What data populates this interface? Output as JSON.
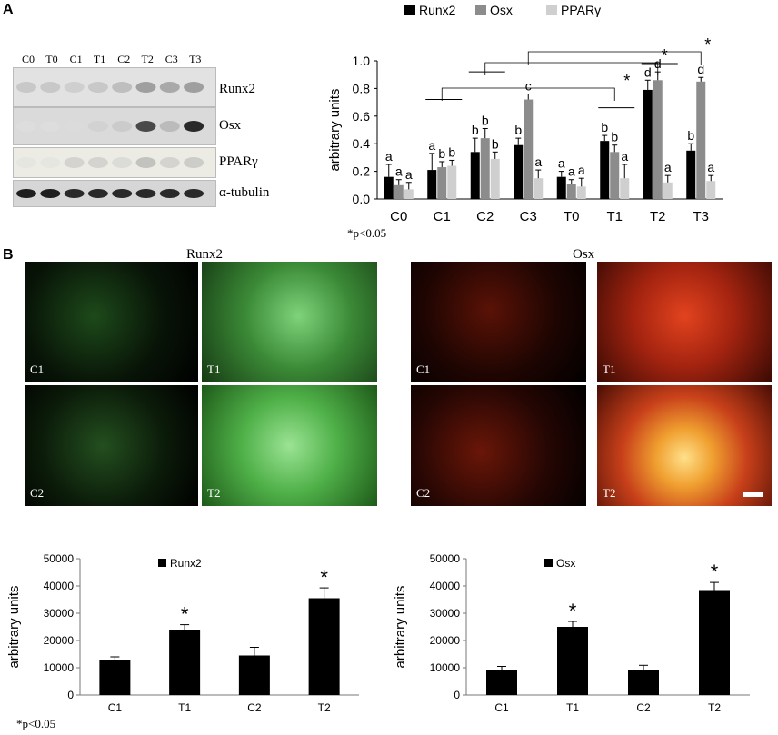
{
  "panels": {
    "a": "A",
    "b": "B"
  },
  "blot": {
    "lanes": [
      "C0",
      "T0",
      "C1",
      "T1",
      "C2",
      "T2",
      "C3",
      "T3"
    ],
    "bands": [
      "Runx2",
      "Osx",
      "PPARγ",
      "α-tubulin"
    ]
  },
  "micro": {
    "runx2_title": "Runx2",
    "osx_title": "Osx",
    "runx2_tiles": [
      "C1",
      "T1",
      "C2",
      "T2"
    ],
    "osx_tiles": [
      "C1",
      "T1",
      "C2",
      "T2"
    ]
  },
  "footnote_top": "*p<0.05",
  "footnote_bottom": "*p<0.05",
  "colors": {
    "runx2": "#000000",
    "osx": "#8c8c8c",
    "pparg": "#cfcfcf",
    "runx2_green": "#3fbf3f",
    "osx_red": "#d63a1a"
  },
  "chart_data": [
    {
      "type": "bar",
      "categories": [
        "C0",
        "C1",
        "C2",
        "C3",
        "T0",
        "T1",
        "T2",
        "T3"
      ],
      "series": [
        {
          "name": "Runx2",
          "values": [
            0.16,
            0.21,
            0.34,
            0.39,
            0.16,
            0.42,
            0.79,
            0.35
          ],
          "errors": [
            0.09,
            0.12,
            0.1,
            0.05,
            0.04,
            0.04,
            0.07,
            0.05
          ],
          "letters": [
            "a",
            "a",
            "b",
            "b",
            "a",
            "b",
            "d",
            "b"
          ]
        },
        {
          "name": "Osx",
          "values": [
            0.1,
            0.23,
            0.44,
            0.72,
            0.11,
            0.34,
            0.86,
            0.85
          ],
          "errors": [
            0.04,
            0.04,
            0.07,
            0.04,
            0.03,
            0.05,
            0.06,
            0.03
          ],
          "letters": [
            "a",
            "b",
            "b",
            "c",
            "a",
            "b",
            "d",
            "d"
          ]
        },
        {
          "name": "PPARγ",
          "values": [
            0.07,
            0.24,
            0.29,
            0.15,
            0.09,
            0.15,
            0.12,
            0.13
          ],
          "errors": [
            0.05,
            0.04,
            0.05,
            0.06,
            0.06,
            0.1,
            0.05,
            0.04
          ],
          "letters": [
            "a",
            "b",
            "b",
            "a",
            "a",
            "a",
            "a",
            "a"
          ]
        }
      ],
      "title": "",
      "xlabel": "",
      "ylabel": "arbitrary units",
      "ylim": [
        0,
        1.0
      ],
      "yticks": [
        "0.0",
        "0.2",
        "0.4",
        "0.6",
        "0.8",
        "1.0"
      ],
      "legend": "top",
      "significance": "*"
    },
    {
      "type": "bar",
      "categories": [
        "C1",
        "T1",
        "C2",
        "T2"
      ],
      "series": [
        {
          "name": "Runx2",
          "values": [
            13000,
            24000,
            14500,
            35500
          ],
          "errors": [
            1000,
            1800,
            3000,
            3800
          ],
          "stars": [
            false,
            true,
            false,
            true
          ]
        }
      ],
      "title": "",
      "ylabel": "arbitrary units",
      "ylim": [
        0,
        50000
      ],
      "yticks": [
        "0",
        "10000",
        "20000",
        "30000",
        "40000",
        "50000"
      ],
      "legend": "top"
    },
    {
      "type": "bar",
      "categories": [
        "C1",
        "T1",
        "C2",
        "T2"
      ],
      "series": [
        {
          "name": "Osx",
          "values": [
            9200,
            25000,
            9300,
            38500
          ],
          "errors": [
            1300,
            2000,
            1600,
            2800
          ],
          "stars": [
            false,
            true,
            false,
            true
          ]
        }
      ],
      "title": "",
      "ylabel": "arbitrary units",
      "ylim": [
        0,
        50000
      ],
      "yticks": [
        "0",
        "10000",
        "20000",
        "30000",
        "40000",
        "50000"
      ],
      "legend": "top"
    }
  ]
}
